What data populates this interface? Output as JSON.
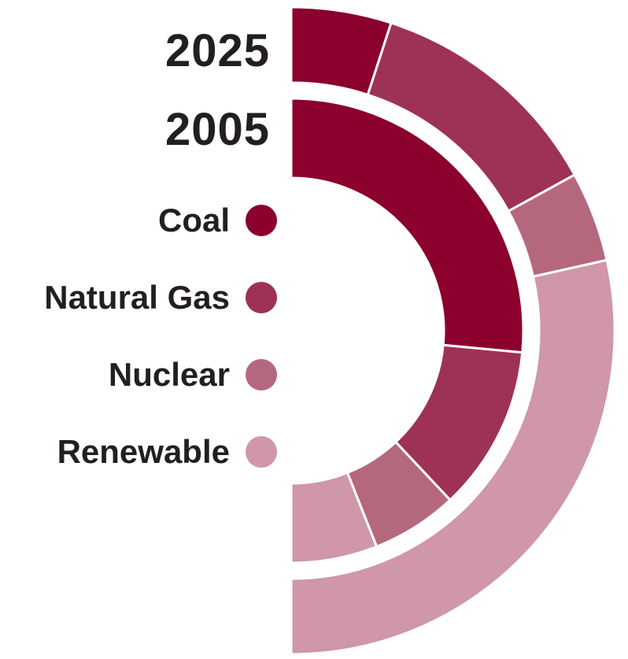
{
  "chart_data": {
    "type": "donut",
    "title": "",
    "rings": [
      {
        "name": "2025",
        "position": "outer",
        "values": [
          {
            "category": "Coal",
            "share": 10
          },
          {
            "category": "Natural Gas",
            "share": 24
          },
          {
            "category": "Nuclear",
            "share": 9
          },
          {
            "category": "Renewable",
            "share": 57
          }
        ]
      },
      {
        "name": "2005",
        "position": "inner",
        "values": [
          {
            "category": "Coal",
            "share": 53
          },
          {
            "category": "Natural Gas",
            "share": 23
          },
          {
            "category": "Nuclear",
            "share": 12
          },
          {
            "category": "Renewable",
            "share": 12
          }
        ]
      }
    ],
    "legend": [
      {
        "label": "Coal",
        "color": "#8b002c"
      },
      {
        "label": "Natural Gas",
        "color": "#9e3254"
      },
      {
        "label": "Nuclear",
        "color": "#b5687d"
      },
      {
        "label": "Renewable",
        "color": "#cf97a8"
      }
    ],
    "legend_placement": "left",
    "layout": "half-donut (right half), two concentric rings"
  }
}
